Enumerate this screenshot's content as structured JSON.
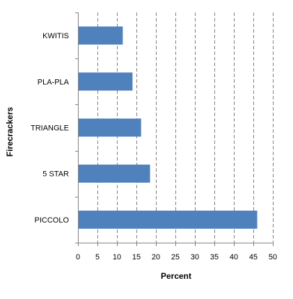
{
  "chart_data": {
    "type": "bar",
    "orientation": "horizontal",
    "categories": [
      "KWITIS",
      "PLA-PLA",
      "TRIANGLE",
      "5 STAR",
      "PICCOLO"
    ],
    "values": [
      11.5,
      14,
      16.2,
      18.5,
      46
    ],
    "xlabel": "Percent",
    "ylabel": "Firecrackers",
    "xlim": [
      0,
      50
    ],
    "xticks": [
      0,
      5,
      10,
      15,
      20,
      25,
      30,
      35,
      40,
      45,
      50
    ],
    "grid": "vertical dashed",
    "bar_color": "#4F81BD",
    "grid_color": "#7f7f7f"
  }
}
